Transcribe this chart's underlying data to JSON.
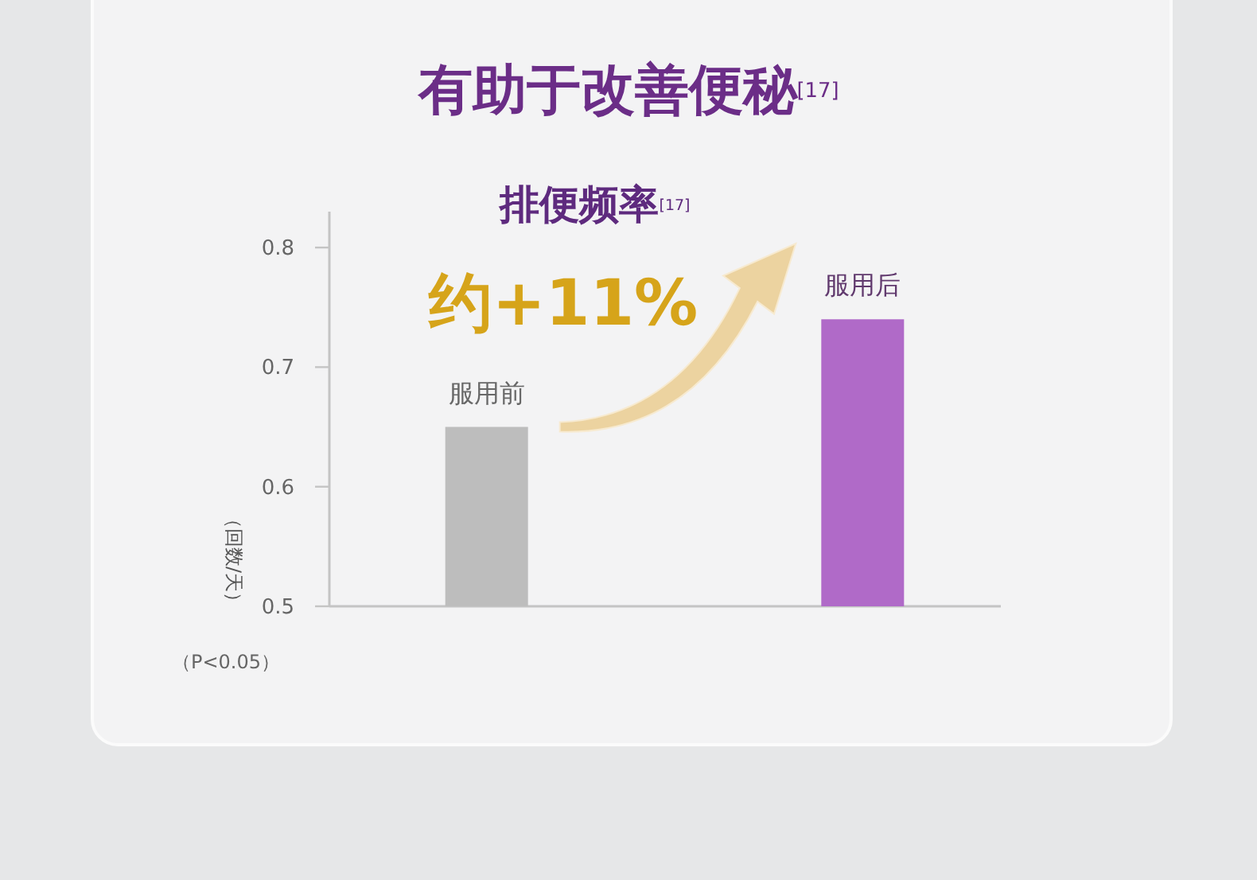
{
  "chart_data": {
    "type": "bar",
    "title": "有助于改善便秘$^{[17]}$",
    "subtitle": "排便频率$^{[17]}$",
    "ylabel": "（回数/天）",
    "categories": [
      "服用前",
      "服用后"
    ],
    "values": [
      0.65,
      0.74
    ],
    "colors": [
      "#bdbdbd",
      "#b06ac8"
    ],
    "ylim": [
      0.5,
      0.83
    ],
    "yticks": [
      0.5,
      0.6,
      0.7,
      0.8
    ],
    "annotations": [
      "约+11%",
      "（P<0.05）"
    ]
  }
}
